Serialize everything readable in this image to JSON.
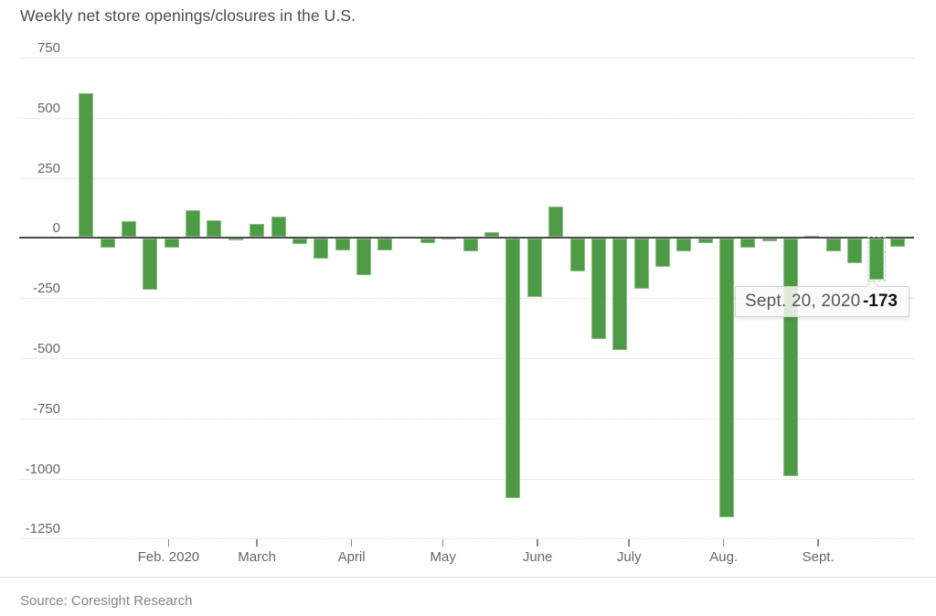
{
  "header": {
    "title": "Weekly net store openings/closures in the U.S."
  },
  "footer": {
    "source": "Source: Coresight Research"
  },
  "chart_data": {
    "type": "bar",
    "title": "Weekly net store openings/closures in the U.S.",
    "xlabel": "",
    "ylabel": "",
    "ylim": [
      -1250,
      750
    ],
    "ytick_step": 250,
    "yticks": [
      750,
      500,
      250,
      0,
      -250,
      -500,
      -750,
      -1000,
      -1250
    ],
    "grid": "horizontal-dotted",
    "bar_color": "#4d9c45",
    "dates": [
      "Jan. 5, 2020",
      "Jan. 12, 2020",
      "Jan. 19, 2020",
      "Jan. 26, 2020",
      "Feb. 2, 2020",
      "Feb. 9, 2020",
      "Feb. 16, 2020",
      "Feb. 23, 2020",
      "March 1, 2020",
      "March 8, 2020",
      "March 15, 2020",
      "March 22, 2020",
      "March 29, 2020",
      "April 5, 2020",
      "April 12, 2020",
      "April 19, 2020",
      "April 26, 2020",
      "May 3, 2020",
      "May 10, 2020",
      "May 17, 2020",
      "May 24, 2020",
      "May 31, 2020",
      "June 7, 2020",
      "June 14, 2020",
      "June 21, 2020",
      "June 28, 2020",
      "July 5, 2020",
      "July 12, 2020",
      "July 19, 2020",
      "July 26, 2020",
      "Aug. 2, 2020",
      "Aug. 9, 2020",
      "Aug. 16, 2020",
      "Aug. 23, 2020",
      "Aug. 30, 2020",
      "Sept. 6, 2020",
      "Sept. 13, 2020",
      "Sept. 20, 2020",
      "Sept. 27, 2020"
    ],
    "values": [
      600,
      -40,
      70,
      -215,
      -40,
      115,
      75,
      -10,
      60,
      90,
      -25,
      -85,
      -50,
      -155,
      -50,
      0,
      -22,
      -8,
      -55,
      25,
      -1080,
      -245,
      130,
      -140,
      -420,
      -465,
      -210,
      -120,
      -55,
      -20,
      -1160,
      -40,
      -15,
      -990,
      10,
      -55,
      -105,
      -173,
      -35
    ],
    "months": [
      {
        "label": "Feb. 2020",
        "week_offset": 3.857
      },
      {
        "label": "March",
        "week_offset": 8.0
      },
      {
        "label": "April",
        "week_offset": 12.429
      },
      {
        "label": "May",
        "week_offset": 16.714
      },
      {
        "label": "June",
        "week_offset": 21.143
      },
      {
        "label": "July",
        "week_offset": 25.429
      },
      {
        "label": "Aug.",
        "week_offset": 29.857
      },
      {
        "label": "Sept.",
        "week_offset": 34.286
      }
    ],
    "tooltip": {
      "date_label": "Sept. 20, 2020",
      "value_label": "-173",
      "hover_index": 37
    }
  }
}
